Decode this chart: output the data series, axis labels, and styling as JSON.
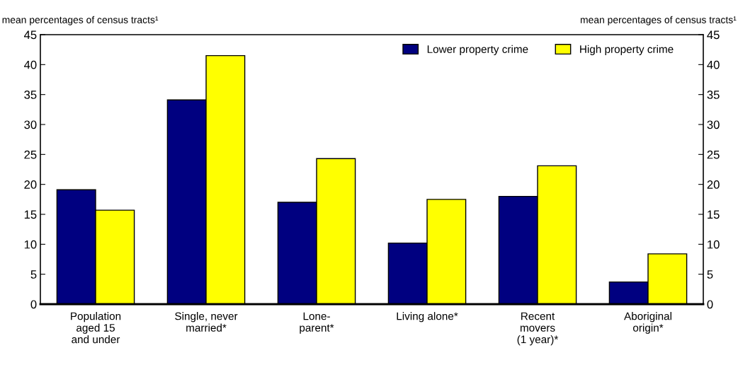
{
  "chart_data": {
    "type": "bar",
    "ylabel": "mean percentages of census tracts¹",
    "y2label": "mean percentages of census tracts¹",
    "categories": [
      "Population\naged 15\nand under",
      "Single, never\nmarried*",
      "Lone-\nparent*",
      "Living alone*",
      "Recent\nmovers\n(1 year)*",
      "Aboriginal\norigin*"
    ],
    "series": [
      {
        "name": "Lower property crime",
        "color": "#000080",
        "values": [
          19.1,
          34.1,
          17.0,
          10.2,
          18.0,
          3.7
        ]
      },
      {
        "name": "High property crime",
        "color": "#ffff00",
        "values": [
          15.7,
          41.5,
          24.3,
          17.5,
          23.1,
          8.4
        ]
      }
    ],
    "ylim": [
      0,
      45
    ],
    "yticks": [
      0,
      5,
      10,
      15,
      20,
      25,
      30,
      35,
      40,
      45
    ],
    "y2lim": [
      0,
      45
    ],
    "y2ticks": [
      0,
      5,
      10,
      15,
      20,
      25,
      30,
      35,
      40,
      45
    ],
    "grid": false,
    "legend": "top right"
  }
}
